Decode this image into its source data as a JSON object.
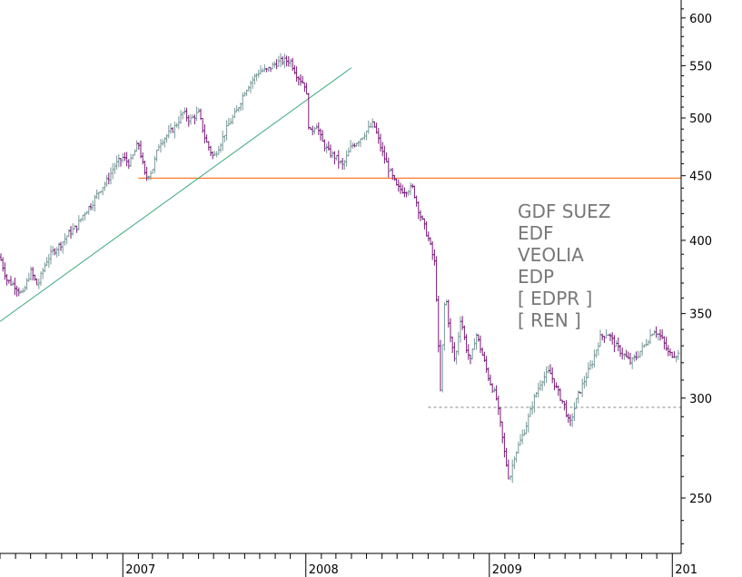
{
  "chart_data": {
    "type": "ohlc",
    "title": "",
    "xlabel": "",
    "ylabel": "",
    "y_scale": "log",
    "ylim": [
      226,
      620
    ],
    "y_ticks": [
      250,
      300,
      350,
      400,
      450,
      500,
      550,
      600
    ],
    "y_tick_labels": [
      "250",
      "300",
      "350",
      "400",
      "450",
      "500",
      "550",
      "600"
    ],
    "x_range": [
      "2006-05-01",
      "2010-01-15"
    ],
    "x_tick_labels": [
      {
        "label": "2007",
        "date": "2007-01-01"
      },
      {
        "label": "2008",
        "date": "2008-01-01"
      },
      {
        "label": "2009",
        "date": "2009-01-01"
      },
      {
        "label": "201",
        "date": "2010-01-01"
      }
    ],
    "legend_lines": [
      "GDF SUEZ",
      "EDF",
      "VEOLIA",
      "EDP",
      "[ EDPR ]",
      "[ REN ]"
    ],
    "colors": {
      "up_bars": "#7a9a9a",
      "down_bars": "#7a1a7a",
      "trendline": "#3aaa7a",
      "support_line": "#ff7a2a",
      "dashed_line": "#888888",
      "legend_text": "#777777"
    },
    "reference_lines": [
      {
        "kind": "support",
        "value": 448,
        "from": "2007-02-01",
        "to": "2010-01-15"
      },
      {
        "kind": "dashed",
        "value": 295,
        "from": "2008-09-01",
        "to": "2010-01-15"
      },
      {
        "kind": "trendline",
        "from_date": "2006-05-01",
        "from_value": 345,
        "to_date": "2008-04-01",
        "to_value": 548
      }
    ],
    "series": [
      {
        "points": [
          [
            "2006-05-01",
            388
          ],
          [
            "2006-05-15",
            372
          ],
          [
            "2006-06-01",
            368
          ],
          [
            "2006-06-15",
            362
          ],
          [
            "2006-07-01",
            378
          ],
          [
            "2006-07-15",
            368
          ],
          [
            "2006-08-01",
            385
          ],
          [
            "2006-08-15",
            392
          ],
          [
            "2006-09-01",
            398
          ],
          [
            "2006-09-15",
            405
          ],
          [
            "2006-10-01",
            410
          ],
          [
            "2006-10-15",
            420
          ],
          [
            "2006-11-01",
            428
          ],
          [
            "2006-11-15",
            438
          ],
          [
            "2006-12-01",
            446
          ],
          [
            "2006-12-15",
            458
          ],
          [
            "2007-01-01",
            465
          ],
          [
            "2007-01-15",
            460
          ],
          [
            "2007-02-01",
            478
          ],
          [
            "2007-02-15",
            448
          ],
          [
            "2007-03-01",
            455
          ],
          [
            "2007-03-15",
            478
          ],
          [
            "2007-04-01",
            485
          ],
          [
            "2007-04-15",
            492
          ],
          [
            "2007-05-01",
            505
          ],
          [
            "2007-05-15",
            498
          ],
          [
            "2007-06-01",
            505
          ],
          [
            "2007-06-15",
            480
          ],
          [
            "2007-07-01",
            465
          ],
          [
            "2007-07-15",
            478
          ],
          [
            "2007-08-01",
            495
          ],
          [
            "2007-08-15",
            505
          ],
          [
            "2007-09-01",
            525
          ],
          [
            "2007-09-15",
            535
          ],
          [
            "2007-10-01",
            545
          ],
          [
            "2007-10-15",
            545
          ],
          [
            "2007-11-01",
            552
          ],
          [
            "2007-11-15",
            555
          ],
          [
            "2007-12-01",
            555
          ],
          [
            "2007-12-15",
            540
          ],
          [
            "2008-01-01",
            530
          ],
          [
            "2008-01-08",
            485
          ],
          [
            "2008-01-22",
            495
          ],
          [
            "2008-02-01",
            480
          ],
          [
            "2008-02-15",
            470
          ],
          [
            "2008-03-01",
            465
          ],
          [
            "2008-03-15",
            458
          ],
          [
            "2008-04-01",
            475
          ],
          [
            "2008-04-15",
            480
          ],
          [
            "2008-05-01",
            488
          ],
          [
            "2008-05-15",
            495
          ],
          [
            "2008-06-01",
            470
          ],
          [
            "2008-06-15",
            455
          ],
          [
            "2008-07-01",
            440
          ],
          [
            "2008-07-15",
            438
          ],
          [
            "2008-08-01",
            440
          ],
          [
            "2008-08-15",
            420
          ],
          [
            "2008-09-01",
            402
          ],
          [
            "2008-09-15",
            382
          ],
          [
            "2008-09-25",
            300
          ],
          [
            "2008-10-05",
            365
          ],
          [
            "2008-10-15",
            335
          ],
          [
            "2008-10-25",
            320
          ],
          [
            "2008-11-05",
            348
          ],
          [
            "2008-11-15",
            330
          ],
          [
            "2008-11-25",
            320
          ],
          [
            "2008-12-05",
            338
          ],
          [
            "2008-12-15",
            328
          ],
          [
            "2009-01-01",
            310
          ],
          [
            "2009-01-15",
            300
          ],
          [
            "2009-02-01",
            270
          ],
          [
            "2009-02-10",
            258
          ],
          [
            "2009-02-20",
            270
          ],
          [
            "2009-03-05",
            278
          ],
          [
            "2009-03-15",
            285
          ],
          [
            "2009-04-01",
            300
          ],
          [
            "2009-04-15",
            310
          ],
          [
            "2009-05-01",
            315
          ],
          [
            "2009-05-15",
            305
          ],
          [
            "2009-06-01",
            295
          ],
          [
            "2009-06-10",
            285
          ],
          [
            "2009-06-25",
            300
          ],
          [
            "2009-07-10",
            310
          ],
          [
            "2009-07-25",
            320
          ],
          [
            "2009-08-10",
            335
          ],
          [
            "2009-08-25",
            338
          ],
          [
            "2009-09-10",
            330
          ],
          [
            "2009-09-25",
            325
          ],
          [
            "2009-10-10",
            320
          ],
          [
            "2009-10-25",
            325
          ],
          [
            "2009-11-10",
            332
          ],
          [
            "2009-11-25",
            340
          ],
          [
            "2009-12-10",
            335
          ],
          [
            "2009-12-25",
            325
          ],
          [
            "2010-01-10",
            325
          ]
        ]
      }
    ]
  }
}
